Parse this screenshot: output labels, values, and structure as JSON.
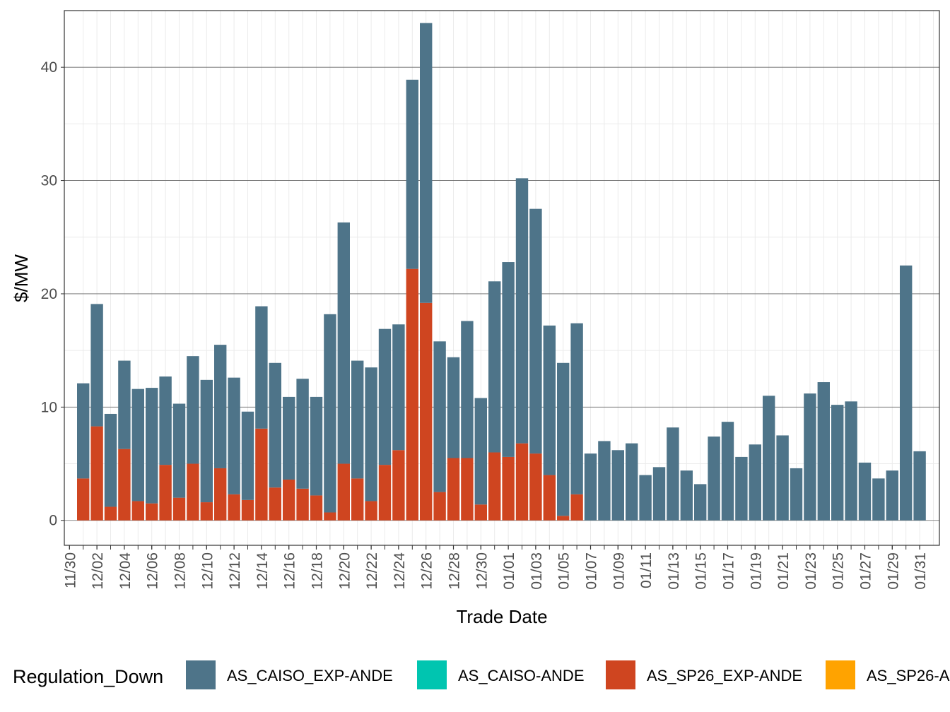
{
  "chart_data": {
    "type": "bar",
    "stacked": true,
    "xlabel": "Trade Date",
    "ylabel": "$/MW",
    "ylim": [
      -2.2,
      45
    ],
    "yticks": [
      0,
      10,
      20,
      30,
      40
    ],
    "grid": true,
    "legend_position": "bottom",
    "legend_title": "Regulation_Down",
    "categories": [
      "11/30",
      "12/01",
      "12/02",
      "12/03",
      "12/04",
      "12/05",
      "12/06",
      "12/07",
      "12/08",
      "12/09",
      "12/10",
      "12/11",
      "12/12",
      "12/13",
      "12/14",
      "12/15",
      "12/16",
      "12/17",
      "12/18",
      "12/19",
      "12/20",
      "12/21",
      "12/22",
      "12/23",
      "12/24",
      "12/25",
      "12/26",
      "12/27",
      "12/28",
      "12/29",
      "12/30",
      "12/31",
      "01/01",
      "01/02",
      "01/03",
      "01/04",
      "01/05",
      "01/06",
      "01/07",
      "01/08",
      "01/09",
      "01/10",
      "01/11",
      "01/12",
      "01/13",
      "01/14",
      "01/15",
      "01/16",
      "01/17",
      "01/18",
      "01/19",
      "01/20",
      "01/21",
      "01/22",
      "01/23",
      "01/24",
      "01/25",
      "01/26",
      "01/27",
      "01/28",
      "01/29",
      "01/30",
      "01/31"
    ],
    "xtick_labels": [
      "11/30",
      "12/02",
      "12/04",
      "12/06",
      "12/08",
      "12/10",
      "12/12",
      "12/14",
      "12/16",
      "12/18",
      "12/20",
      "12/22",
      "12/24",
      "12/26",
      "12/28",
      "12/30",
      "01/01",
      "01/03",
      "01/05",
      "01/07",
      "01/09",
      "01/11",
      "01/13",
      "01/15",
      "01/17",
      "01/19",
      "01/21",
      "01/23",
      "01/25",
      "01/27",
      "01/29",
      "01/31"
    ],
    "series": [
      {
        "name": "AS_CAISO_EXP-ANDE",
        "color": "#4e7489",
        "values": [
          8.4,
          10.8,
          8.2,
          7.8,
          9.9,
          10.2,
          7.8,
          8.3,
          9.5,
          10.8,
          10.9,
          10.3,
          7.8,
          10.8,
          11.0,
          7.3,
          9.7,
          8.7,
          17.5,
          21.3,
          10.4,
          11.8,
          12.0,
          11.1,
          16.7,
          24.7,
          13.3,
          8.9,
          12.1,
          9.4,
          15.1,
          17.2,
          23.4,
          21.6,
          13.2,
          13.5,
          15.1,
          5.9,
          7.0,
          6.2,
          6.8,
          4.0,
          4.7,
          8.2,
          4.4,
          3.2,
          7.4,
          8.7,
          5.6,
          6.7,
          11.0,
          7.5,
          4.6,
          11.2,
          12.2,
          10.2,
          10.5,
          5.1,
          3.7,
          4.4,
          22.5,
          6.1,
          0.0
        ]
      },
      {
        "name": "AS_CAISO-ANDE",
        "color": "#00c5b0",
        "values": [
          0,
          0,
          0,
          0,
          0,
          0,
          0,
          0,
          0,
          0,
          0,
          0,
          0,
          0,
          0,
          0,
          0,
          0,
          0,
          0,
          0,
          0,
          0,
          0,
          0,
          0,
          0,
          0,
          0,
          0,
          0,
          0,
          0,
          0,
          0,
          0,
          0,
          0,
          0,
          0,
          0,
          0,
          0,
          0,
          0,
          0,
          0,
          0,
          0,
          0,
          0,
          0,
          0,
          0,
          0,
          0,
          0,
          0,
          0,
          0,
          0,
          0,
          0
        ]
      },
      {
        "name": "AS_SP26_EXP-ANDE",
        "color": "#cf4520",
        "values": [
          3.7,
          8.3,
          1.2,
          6.3,
          1.7,
          1.5,
          4.9,
          2.0,
          5.0,
          1.6,
          4.6,
          2.3,
          1.8,
          8.1,
          2.9,
          3.6,
          2.8,
          2.2,
          0.7,
          5.0,
          3.7,
          1.7,
          4.9,
          6.2,
          22.2,
          19.2,
          2.5,
          5.5,
          5.5,
          1.4,
          6.0,
          5.6,
          6.8,
          5.9,
          4.0,
          0.4,
          2.3,
          0,
          0,
          0,
          0,
          0,
          0,
          0,
          0,
          0,
          0,
          0,
          0,
          0,
          0,
          0,
          0,
          0,
          0,
          0,
          0,
          0,
          0,
          0,
          0,
          0,
          0
        ]
      },
      {
        "name": "AS_SP26-A",
        "color": "#ffa300",
        "values": [
          0,
          0,
          0,
          0,
          0,
          0,
          0,
          0,
          0,
          0,
          0,
          0,
          0,
          0,
          0,
          0,
          0,
          0,
          0,
          0,
          0,
          0,
          0,
          0,
          0,
          0,
          0,
          0,
          0,
          0,
          0,
          0,
          0,
          0,
          0,
          0,
          0,
          0,
          0,
          0,
          0,
          0,
          0,
          0,
          0,
          0,
          0,
          0,
          0,
          0,
          0,
          0,
          0,
          0,
          0,
          0,
          0,
          0,
          0,
          0,
          0,
          0,
          0
        ]
      }
    ]
  }
}
